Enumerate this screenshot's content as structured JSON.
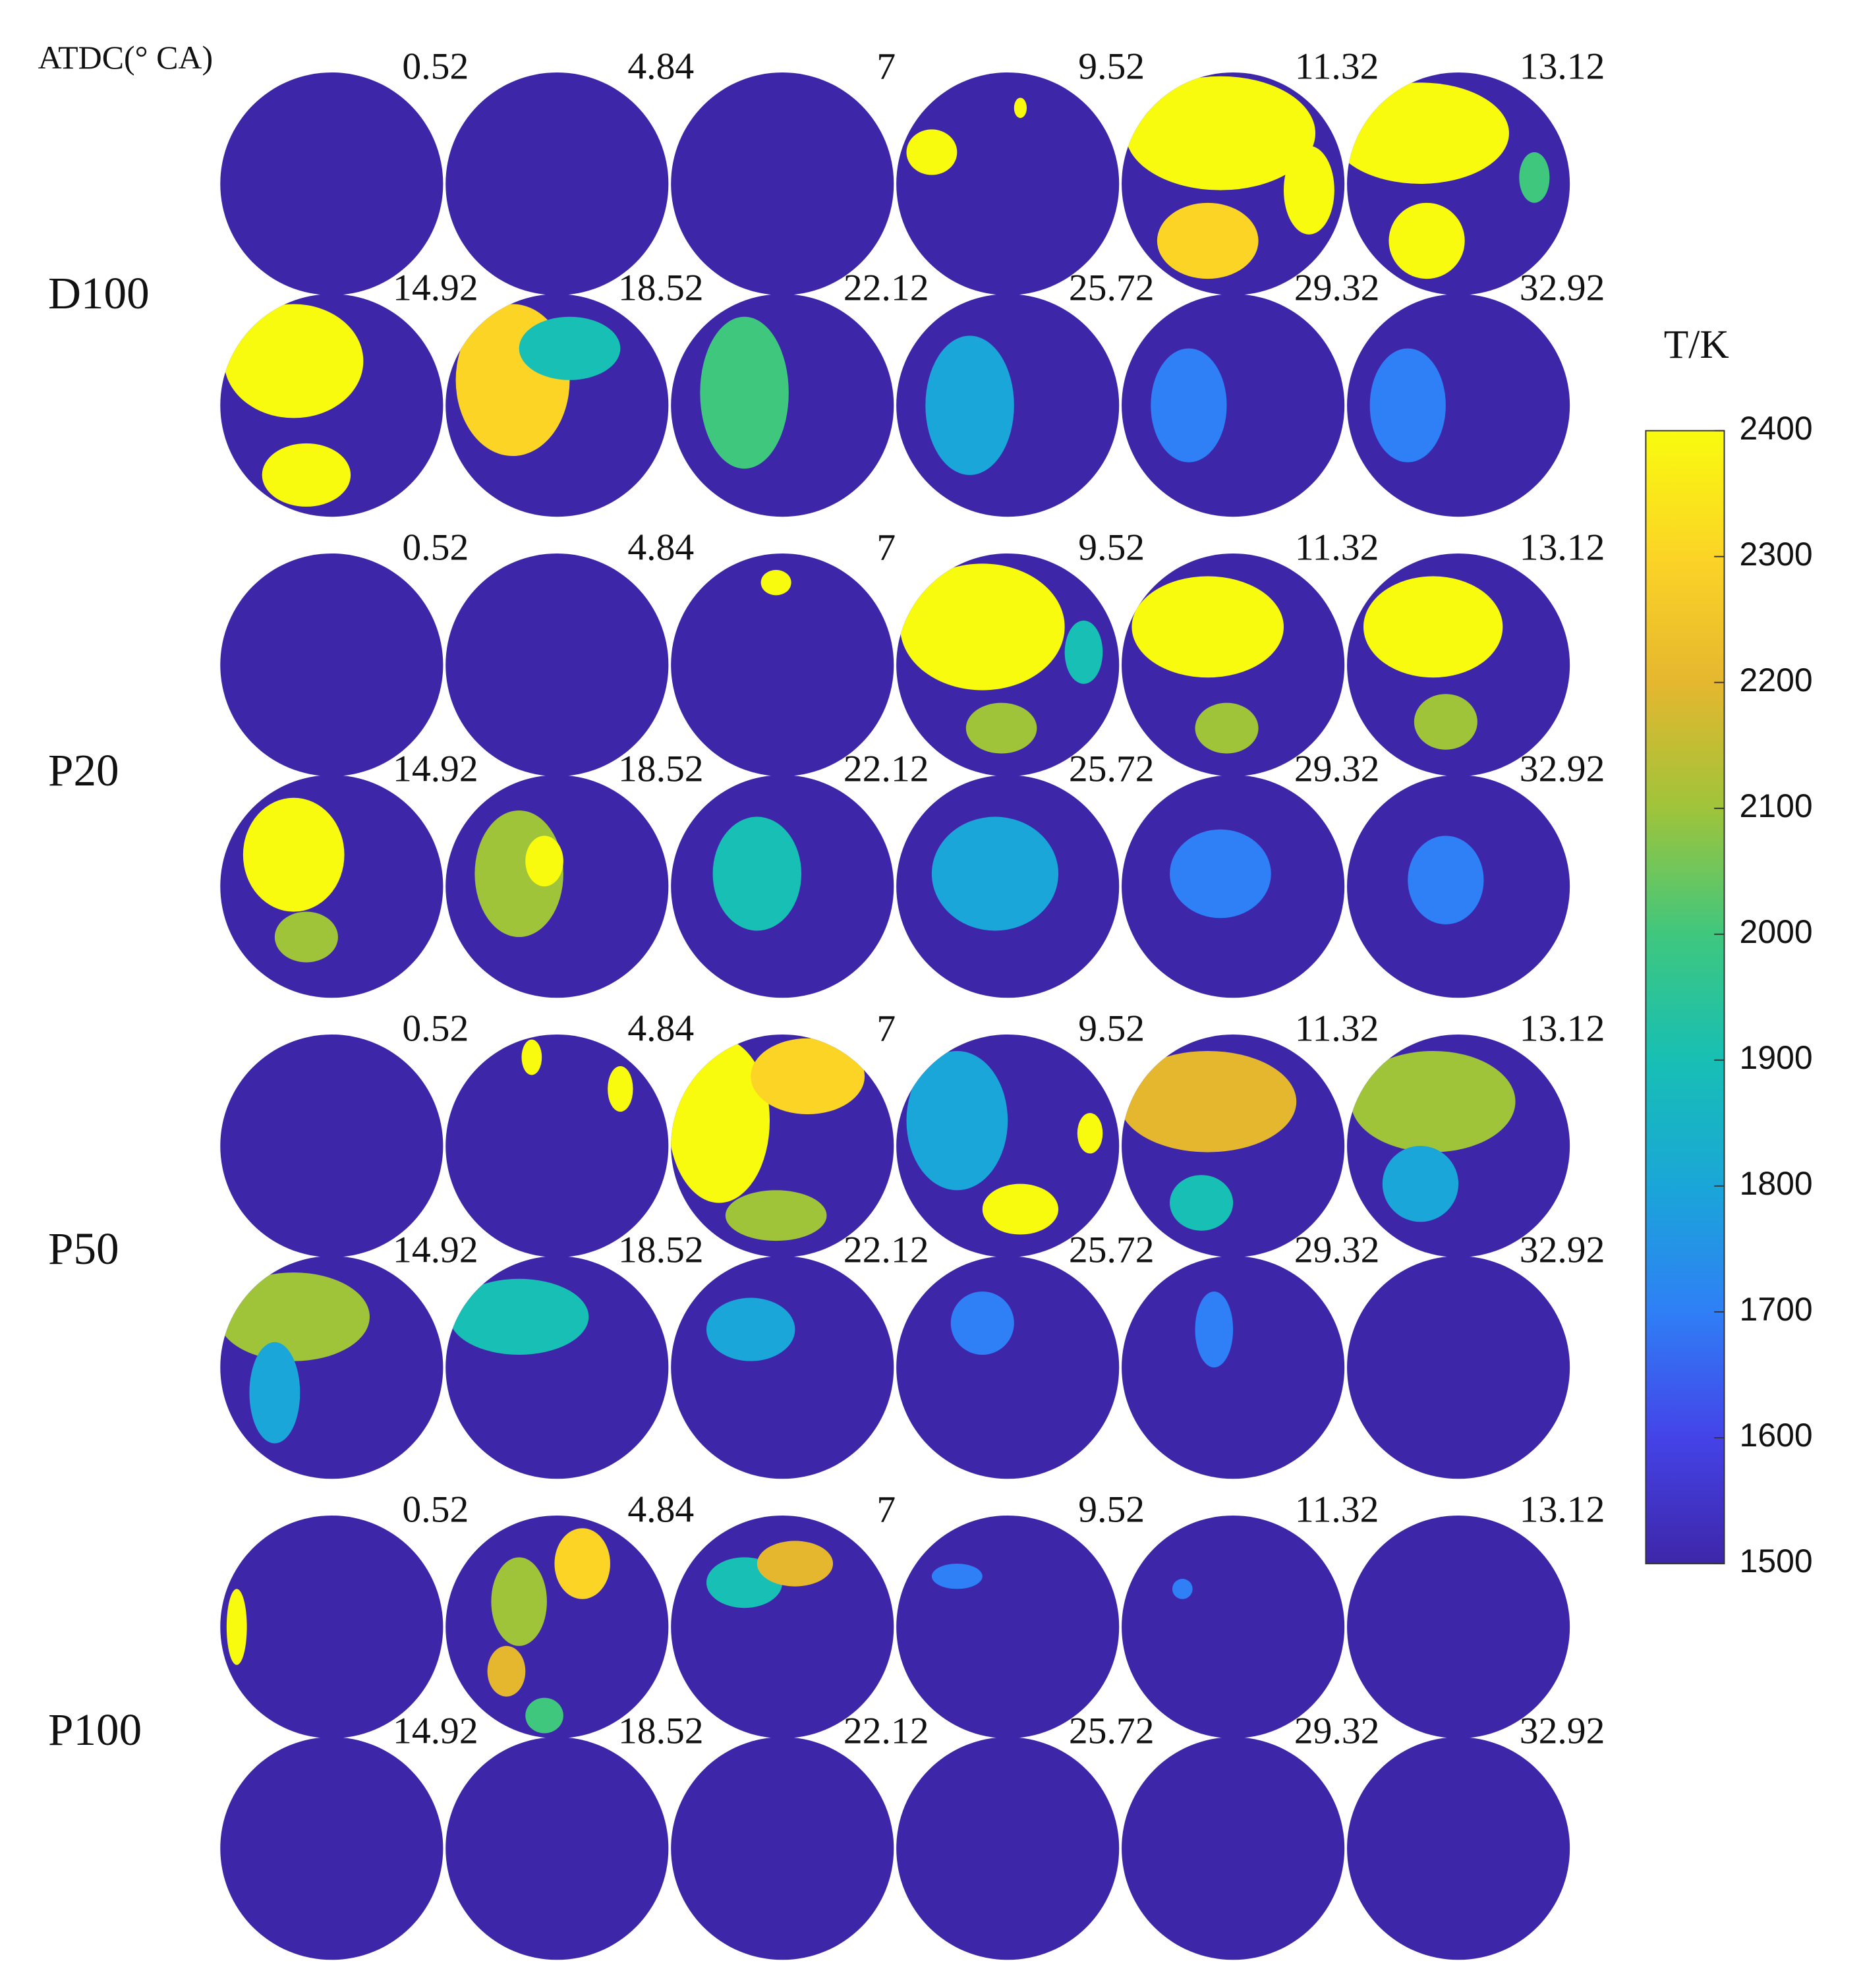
{
  "header": "ATDC(° CA)",
  "groups": [
    {
      "name": "D100",
      "times": [
        "0.52",
        "4.84",
        "7",
        "9.52",
        "11.32",
        "13.12",
        "14.92",
        "18.52",
        "22.12",
        "25.72",
        "29.32",
        "32.92"
      ]
    },
    {
      "name": "P20",
      "times": [
        "0.52",
        "4.84",
        "7",
        "9.52",
        "11.32",
        "13.12",
        "14.92",
        "18.52",
        "22.12",
        "25.72",
        "29.32",
        "32.92"
      ]
    },
    {
      "name": "P50",
      "times": [
        "0.52",
        "4.84",
        "7",
        "9.52",
        "11.32",
        "13.12",
        "14.92",
        "18.52",
        "22.12",
        "25.72",
        "29.32",
        "32.92"
      ]
    },
    {
      "name": "P100",
      "times": [
        "0.52",
        "4.84",
        "7",
        "9.52",
        "11.32",
        "13.12",
        "14.92",
        "18.52",
        "22.12",
        "25.72",
        "29.32",
        "32.92"
      ]
    }
  ],
  "colorbar": {
    "label": "T/K",
    "range": [
      1500,
      2400
    ],
    "ticks": [
      1500,
      1600,
      1700,
      1800,
      1900,
      2000,
      2100,
      2200,
      2300,
      2400
    ],
    "colors": [
      "#3e26a8",
      "#4443e8",
      "#2f7ff6",
      "#1aa6d8",
      "#17bfb4",
      "#3fc77e",
      "#9fc43a",
      "#e5b72f",
      "#fbd426",
      "#f9fb0e"
    ]
  }
}
